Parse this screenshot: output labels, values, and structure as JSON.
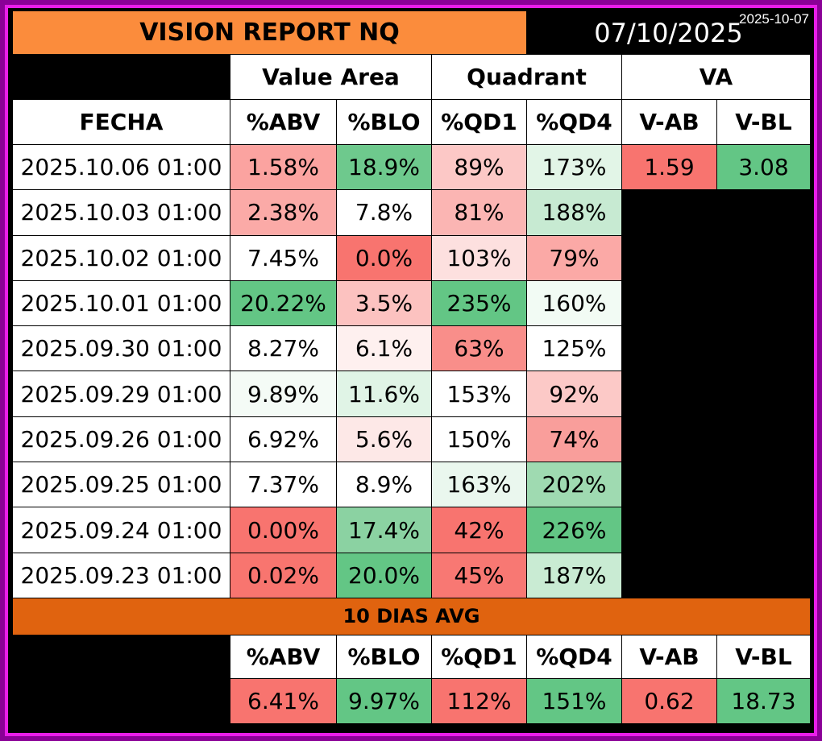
{
  "title": "VISION REPORT NQ",
  "date": "07/10/2025",
  "stamp": "2025-10-07",
  "groups": {
    "value_area": "Value Area",
    "quadrant": "Quadrant",
    "va": "VA"
  },
  "columns": {
    "fecha": "FECHA",
    "abv": "%ABV",
    "blo": "%BLO",
    "qd1": "%QD1",
    "qd4": "%QD4",
    "vab": "V-AB",
    "vbl": "V-BL"
  },
  "colors": {
    "red": "#f8746f",
    "red_mid": "#fba3a0",
    "red_light": "#fcc8c6",
    "red_pale": "#fde4e3",
    "green": "#63c685",
    "green_mid": "#93d6a7",
    "green_light": "#c2e8cd",
    "green_pale": "#e6f6ea",
    "white": "#ffffff"
  },
  "rows": [
    {
      "fecha": "2025.10.06 01:00",
      "abv": "1.58%",
      "abv_c": "#fba3a0",
      "blo": "18.9%",
      "blo_c": "#6ec98d",
      "qd1": "89%",
      "qd1_c": "#fcc8c6",
      "qd4": "173%",
      "qd4_c": "#e2f5e7",
      "vab": "1.59",
      "vab_c": "#f8746f",
      "vbl": "3.08",
      "vbl_c": "#63c685"
    },
    {
      "fecha": "2025.10.03 01:00",
      "abv": "2.38%",
      "abv_c": "#fbaaa7",
      "blo": "7.8%",
      "blo_c": "#ffffff",
      "qd1": "81%",
      "qd1_c": "#fbb5b3",
      "qd4": "188%",
      "qd4_c": "#c7ead2"
    },
    {
      "fecha": "2025.10.02 01:00",
      "abv": "7.45%",
      "abv_c": "#ffffff",
      "blo": "0.0%",
      "blo_c": "#f8746f",
      "qd1": "103%",
      "qd1_c": "#fde0df",
      "qd4": "79%",
      "qd4_c": "#fba9a6"
    },
    {
      "fecha": "2025.10.01 01:00",
      "abv": "20.22%",
      "abv_c": "#63c685",
      "blo": "3.5%",
      "blo_c": "#fcc2c0",
      "qd1": "235%",
      "qd1_c": "#63c685",
      "qd4": "160%",
      "qd4_c": "#f2fbf4"
    },
    {
      "fecha": "2025.09.30 01:00",
      "abv": "8.27%",
      "abv_c": "#ffffff",
      "blo": "6.1%",
      "blo_c": "#fef0ef",
      "qd1": "63%",
      "qd1_c": "#f98e8a",
      "qd4": "125%",
      "qd4_c": "#ffffff"
    },
    {
      "fecha": "2025.09.29 01:00",
      "abv": "9.89%",
      "abv_c": "#f4fbf6",
      "blo": "11.6%",
      "blo_c": "#e0f4e6",
      "qd1": "153%",
      "qd1_c": "#ffffff",
      "qd4": "92%",
      "qd4_c": "#fcc9c7"
    },
    {
      "fecha": "2025.09.26 01:00",
      "abv": "6.92%",
      "abv_c": "#ffffff",
      "blo": "5.6%",
      "blo_c": "#fde8e7",
      "qd1": "150%",
      "qd1_c": "#ffffff",
      "qd4": "74%",
      "qd4_c": "#f99e9b"
    },
    {
      "fecha": "2025.09.25 01:00",
      "abv": "7.37%",
      "abv_c": "#ffffff",
      "blo": "8.9%",
      "blo_c": "#ffffff",
      "qd1": "163%",
      "qd1_c": "#eaf7ee",
      "qd4": "202%",
      "qd4_c": "#9fdab1"
    },
    {
      "fecha": "2025.09.24 01:00",
      "abv": "0.00%",
      "abv_c": "#f8746f",
      "blo": "17.4%",
      "blo_c": "#8bd2a2",
      "qd1": "42%",
      "qd1_c": "#f8746f",
      "qd4": "226%",
      "qd4_c": "#63c685"
    },
    {
      "fecha": "2025.09.23 01:00",
      "abv": "0.02%",
      "abv_c": "#f8756f",
      "blo": "20.0%",
      "blo_c": "#63c685",
      "qd1": "45%",
      "qd1_c": "#f87873",
      "qd4": "187%",
      "qd4_c": "#c9ebd3"
    }
  ],
  "avg": {
    "label": "10 DIAS AVG",
    "abv": "6.41%",
    "abv_c": "#f8746f",
    "blo": "9.97%",
    "blo_c": "#63c685",
    "qd1": "112%",
    "qd1_c": "#f8746f",
    "qd4": "151%",
    "qd4_c": "#63c685",
    "vab": "0.62",
    "vab_c": "#f8746f",
    "vbl": "18.73",
    "vbl_c": "#63c685"
  }
}
